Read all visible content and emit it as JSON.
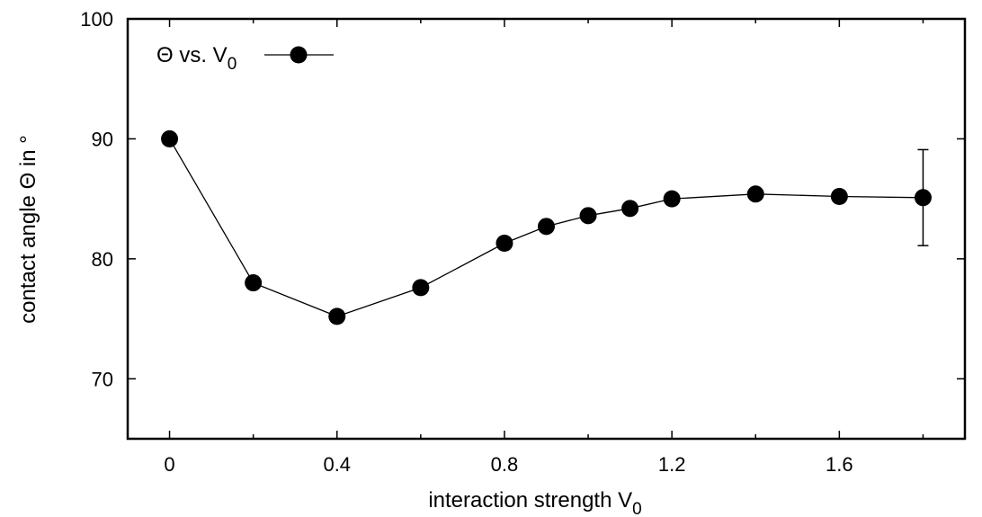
{
  "chart_data": {
    "type": "line",
    "title": "",
    "xlabel": "interaction strength V",
    "xlabel_sub": "0",
    "ylabel": "contact angle Θ in °",
    "xlim": [
      -0.1,
      1.9
    ],
    "ylim": [
      65,
      100
    ],
    "xticks": [
      0,
      0.4,
      0.8,
      1.2,
      1.6
    ],
    "xtick_labels": [
      "0",
      "0.4",
      "0.8",
      "1.2",
      "1.6"
    ],
    "xticks_minor": [
      0.2,
      0.6,
      1.0,
      1.4,
      1.8
    ],
    "yticks": [
      70,
      80,
      90,
      100
    ],
    "ytick_labels": [
      "70",
      "80",
      "90",
      "100"
    ],
    "grid": false,
    "legend_position": "top-left",
    "series": [
      {
        "name": "Θ vs. V",
        "name_sub": "0",
        "color": "#000000",
        "marker": "filled-circle",
        "x": [
          0,
          0.2,
          0.4,
          0.6,
          0.8,
          0.9,
          1.0,
          1.1,
          1.2,
          1.4,
          1.6,
          1.8
        ],
        "y": [
          90.0,
          78.0,
          75.2,
          77.6,
          81.3,
          82.7,
          83.6,
          84.2,
          85.0,
          85.4,
          85.2,
          85.1
        ],
        "error": [
          null,
          null,
          null,
          null,
          null,
          null,
          null,
          null,
          null,
          null,
          null,
          4.0
        ]
      }
    ]
  }
}
